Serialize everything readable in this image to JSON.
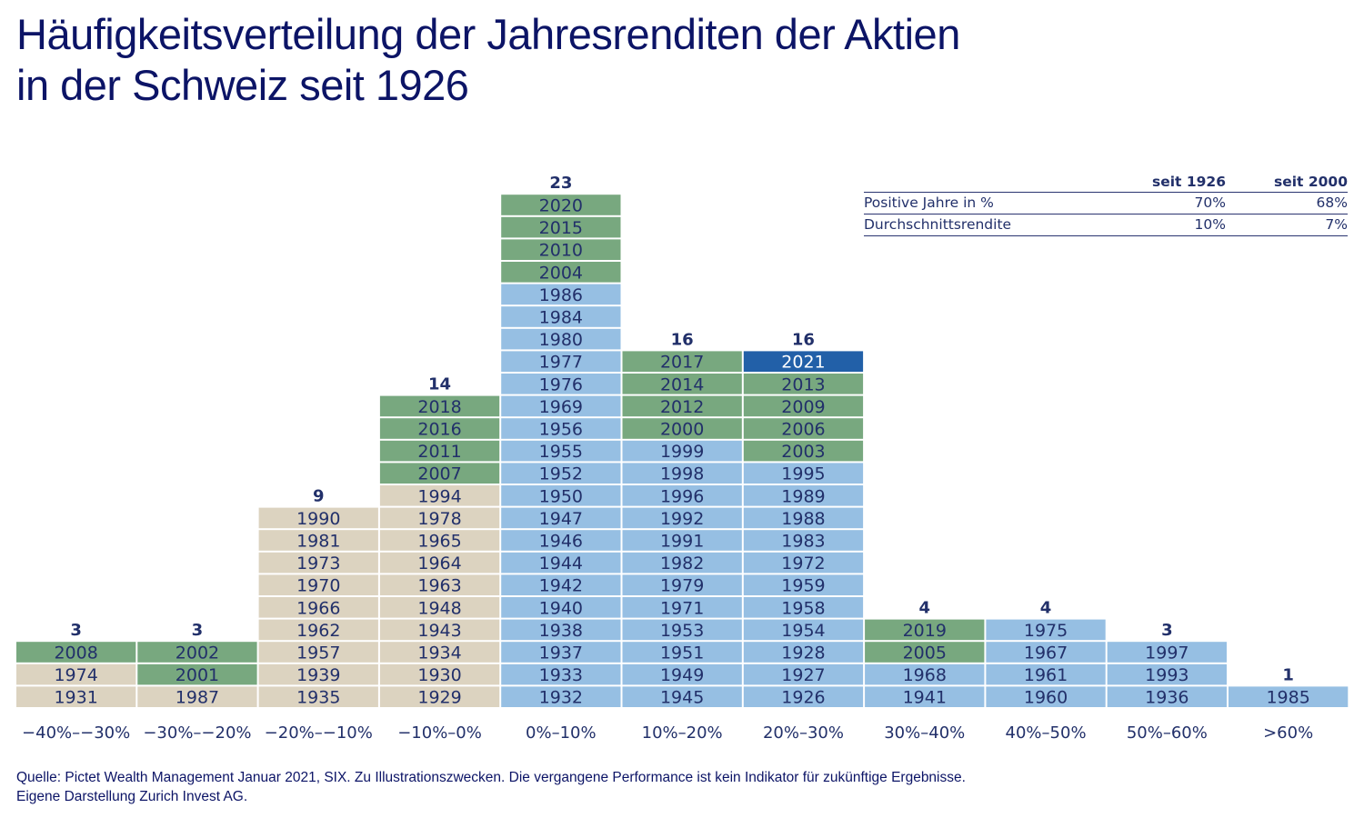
{
  "title": {
    "line1": "Häufigkeitsverteilung der Jahresrenditen der Aktien",
    "line2": "in der Schweiz seit 1926"
  },
  "colors": {
    "before_2000_negative": "#dcd3c0",
    "since_2000": "#78a87f",
    "before_2000_positive": "#96bfe3",
    "highlight_2021": "#2260a8",
    "text": "#22306a",
    "title": "#0c1466"
  },
  "stats_table": {
    "headers": [
      "",
      "seit 1926",
      "seit 2000"
    ],
    "rows": [
      {
        "label": "Positive Jahre in %",
        "since_1926": "70%",
        "since_2000": "68%"
      },
      {
        "label": "Durchschnittsrendite",
        "since_1926": "10%",
        "since_2000": "7%"
      }
    ]
  },
  "source": {
    "line1": "Quelle: Pictet Wealth Management Januar 2021, SIX. Zu Illustrationszwecken. Die vergangene Performance ist kein Indikator für zukünftige Ergebnisse.",
    "line2": "Eigene Darstellung Zurich Invest AG."
  },
  "chart_data": {
    "type": "bar",
    "title": "Häufigkeitsverteilung der Jahresrenditen der Aktien in der Schweiz seit 1926",
    "xlabel": "",
    "ylabel": "",
    "categories": [
      "−40%–−30%",
      "−30%–−20%",
      "−20%–−10%",
      "−10%–0%",
      "0%–10%",
      "10%–20%",
      "20%–30%",
      "30%–40%",
      "40%–50%",
      "50%–60%",
      ">60%"
    ],
    "values": [
      3,
      3,
      9,
      14,
      23,
      16,
      16,
      4,
      4,
      3,
      1
    ],
    "stacks": [
      {
        "category": "−40%–−30%",
        "count": 3,
        "years": [
          {
            "year": "2008",
            "kind": "since_2000"
          },
          {
            "year": "1974",
            "kind": "before_2000_negative"
          },
          {
            "year": "1931",
            "kind": "before_2000_negative"
          }
        ]
      },
      {
        "category": "−30%–−20%",
        "count": 3,
        "years": [
          {
            "year": "2002",
            "kind": "since_2000"
          },
          {
            "year": "2001",
            "kind": "since_2000"
          },
          {
            "year": "1987",
            "kind": "before_2000_negative"
          }
        ]
      },
      {
        "category": "−20%–−10%",
        "count": 9,
        "years": [
          {
            "year": "1990",
            "kind": "before_2000_negative"
          },
          {
            "year": "1981",
            "kind": "before_2000_negative"
          },
          {
            "year": "1973",
            "kind": "before_2000_negative"
          },
          {
            "year": "1970",
            "kind": "before_2000_negative"
          },
          {
            "year": "1966",
            "kind": "before_2000_negative"
          },
          {
            "year": "1962",
            "kind": "before_2000_negative"
          },
          {
            "year": "1957",
            "kind": "before_2000_negative"
          },
          {
            "year": "1939",
            "kind": "before_2000_negative"
          },
          {
            "year": "1935",
            "kind": "before_2000_negative"
          }
        ]
      },
      {
        "category": "−10%–0%",
        "count": 14,
        "years": [
          {
            "year": "2018",
            "kind": "since_2000"
          },
          {
            "year": "2016",
            "kind": "since_2000"
          },
          {
            "year": "2011",
            "kind": "since_2000"
          },
          {
            "year": "2007",
            "kind": "since_2000"
          },
          {
            "year": "1994",
            "kind": "before_2000_negative"
          },
          {
            "year": "1978",
            "kind": "before_2000_negative"
          },
          {
            "year": "1965",
            "kind": "before_2000_negative"
          },
          {
            "year": "1964",
            "kind": "before_2000_negative"
          },
          {
            "year": "1963",
            "kind": "before_2000_negative"
          },
          {
            "year": "1948",
            "kind": "before_2000_negative"
          },
          {
            "year": "1943",
            "kind": "before_2000_negative"
          },
          {
            "year": "1934",
            "kind": "before_2000_negative"
          },
          {
            "year": "1930",
            "kind": "before_2000_negative"
          },
          {
            "year": "1929",
            "kind": "before_2000_negative"
          }
        ]
      },
      {
        "category": "0%–10%",
        "count": 23,
        "years": [
          {
            "year": "2020",
            "kind": "since_2000"
          },
          {
            "year": "2015",
            "kind": "since_2000"
          },
          {
            "year": "2010",
            "kind": "since_2000"
          },
          {
            "year": "2004",
            "kind": "since_2000"
          },
          {
            "year": "1986",
            "kind": "before_2000_positive"
          },
          {
            "year": "1984",
            "kind": "before_2000_positive"
          },
          {
            "year": "1980",
            "kind": "before_2000_positive"
          },
          {
            "year": "1977",
            "kind": "before_2000_positive"
          },
          {
            "year": "1976",
            "kind": "before_2000_positive"
          },
          {
            "year": "1969",
            "kind": "before_2000_positive"
          },
          {
            "year": "1956",
            "kind": "before_2000_positive"
          },
          {
            "year": "1955",
            "kind": "before_2000_positive"
          },
          {
            "year": "1952",
            "kind": "before_2000_positive"
          },
          {
            "year": "1950",
            "kind": "before_2000_positive"
          },
          {
            "year": "1947",
            "kind": "before_2000_positive"
          },
          {
            "year": "1946",
            "kind": "before_2000_positive"
          },
          {
            "year": "1944",
            "kind": "before_2000_positive"
          },
          {
            "year": "1942",
            "kind": "before_2000_positive"
          },
          {
            "year": "1940",
            "kind": "before_2000_positive"
          },
          {
            "year": "1938",
            "kind": "before_2000_positive"
          },
          {
            "year": "1937",
            "kind": "before_2000_positive"
          },
          {
            "year": "1933",
            "kind": "before_2000_positive"
          },
          {
            "year": "1932",
            "kind": "before_2000_positive"
          }
        ]
      },
      {
        "category": "10%–20%",
        "count": 16,
        "years": [
          {
            "year": "2017",
            "kind": "since_2000"
          },
          {
            "year": "2014",
            "kind": "since_2000"
          },
          {
            "year": "2012",
            "kind": "since_2000"
          },
          {
            "year": "2000",
            "kind": "since_2000"
          },
          {
            "year": "1999",
            "kind": "before_2000_positive"
          },
          {
            "year": "1998",
            "kind": "before_2000_positive"
          },
          {
            "year": "1996",
            "kind": "before_2000_positive"
          },
          {
            "year": "1992",
            "kind": "before_2000_positive"
          },
          {
            "year": "1991",
            "kind": "before_2000_positive"
          },
          {
            "year": "1982",
            "kind": "before_2000_positive"
          },
          {
            "year": "1979",
            "kind": "before_2000_positive"
          },
          {
            "year": "1971",
            "kind": "before_2000_positive"
          },
          {
            "year": "1953",
            "kind": "before_2000_positive"
          },
          {
            "year": "1951",
            "kind": "before_2000_positive"
          },
          {
            "year": "1949",
            "kind": "before_2000_positive"
          },
          {
            "year": "1945",
            "kind": "before_2000_positive"
          }
        ]
      },
      {
        "category": "20%–30%",
        "count": 16,
        "years": [
          {
            "year": "2021",
            "kind": "highlight_2021"
          },
          {
            "year": "2013",
            "kind": "since_2000"
          },
          {
            "year": "2009",
            "kind": "since_2000"
          },
          {
            "year": "2006",
            "kind": "since_2000"
          },
          {
            "year": "2003",
            "kind": "since_2000"
          },
          {
            "year": "1995",
            "kind": "before_2000_positive"
          },
          {
            "year": "1989",
            "kind": "before_2000_positive"
          },
          {
            "year": "1988",
            "kind": "before_2000_positive"
          },
          {
            "year": "1983",
            "kind": "before_2000_positive"
          },
          {
            "year": "1972",
            "kind": "before_2000_positive"
          },
          {
            "year": "1959",
            "kind": "before_2000_positive"
          },
          {
            "year": "1958",
            "kind": "before_2000_positive"
          },
          {
            "year": "1954",
            "kind": "before_2000_positive"
          },
          {
            "year": "1928",
            "kind": "before_2000_positive"
          },
          {
            "year": "1927",
            "kind": "before_2000_positive"
          },
          {
            "year": "1926",
            "kind": "before_2000_positive"
          }
        ]
      },
      {
        "category": "30%–40%",
        "count": 4,
        "years": [
          {
            "year": "2019",
            "kind": "since_2000"
          },
          {
            "year": "2005",
            "kind": "since_2000"
          },
          {
            "year": "1968",
            "kind": "before_2000_positive"
          },
          {
            "year": "1941",
            "kind": "before_2000_positive"
          }
        ]
      },
      {
        "category": "40%–50%",
        "count": 4,
        "years": [
          {
            "year": "1975",
            "kind": "before_2000_positive"
          },
          {
            "year": "1967",
            "kind": "before_2000_positive"
          },
          {
            "year": "1961",
            "kind": "before_2000_positive"
          },
          {
            "year": "1960",
            "kind": "before_2000_positive"
          }
        ]
      },
      {
        "category": "50%–60%",
        "count": 3,
        "years": [
          {
            "year": "1997",
            "kind": "before_2000_positive"
          },
          {
            "year": "1993",
            "kind": "before_2000_positive"
          },
          {
            "year": "1936",
            "kind": "before_2000_positive"
          }
        ]
      },
      {
        "category": ">60%",
        "count": 1,
        "years": [
          {
            "year": "1985",
            "kind": "before_2000_positive"
          }
        ]
      }
    ],
    "ylim": [
      0,
      23
    ],
    "grid": false,
    "legend": "none"
  }
}
